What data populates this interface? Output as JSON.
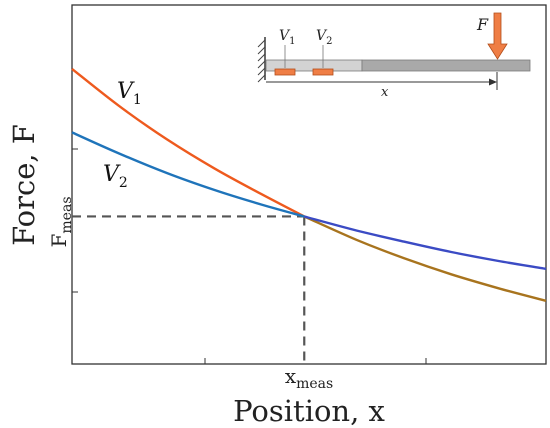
{
  "chart_data": {
    "type": "line",
    "title": "",
    "xlabel": "Position, x",
    "ylabel": "Force, F",
    "xlim": [
      0,
      1
    ],
    "ylim": [
      0,
      1
    ],
    "x_marker": {
      "label": "x",
      "sub": "meas",
      "value": 0.49
    },
    "y_marker": {
      "label": "F",
      "sub": "meas",
      "value": 0.411
    },
    "grid": false,
    "series": [
      {
        "name": "V1",
        "name_main": "V",
        "name_sub": "1",
        "color": "#ee5a1e",
        "tail_color": "#a8741e",
        "x": [
          0,
          0.1,
          0.2,
          0.3,
          0.4,
          0.49,
          0.6,
          0.7,
          0.8,
          0.9,
          1.0
        ],
        "y": [
          0.822,
          0.718,
          0.626,
          0.545,
          0.473,
          0.411,
          0.346,
          0.295,
          0.25,
          0.211,
          0.176
        ]
      },
      {
        "name": "V2",
        "name_main": "V",
        "name_sub": "2",
        "color": "#1f74ba",
        "tail_color": "#3b4bc4",
        "x": [
          0,
          0.1,
          0.2,
          0.3,
          0.4,
          0.49,
          0.6,
          0.7,
          0.8,
          0.9,
          1.0
        ],
        "y": [
          0.645,
          0.586,
          0.532,
          0.485,
          0.444,
          0.411,
          0.372,
          0.341,
          0.312,
          0.287,
          0.265
        ]
      }
    ]
  },
  "inset": {
    "v1_main": "V",
    "v1_sub": "1",
    "v2_main": "V",
    "v2_sub": "2",
    "x_label": "x",
    "f_label": "F"
  }
}
